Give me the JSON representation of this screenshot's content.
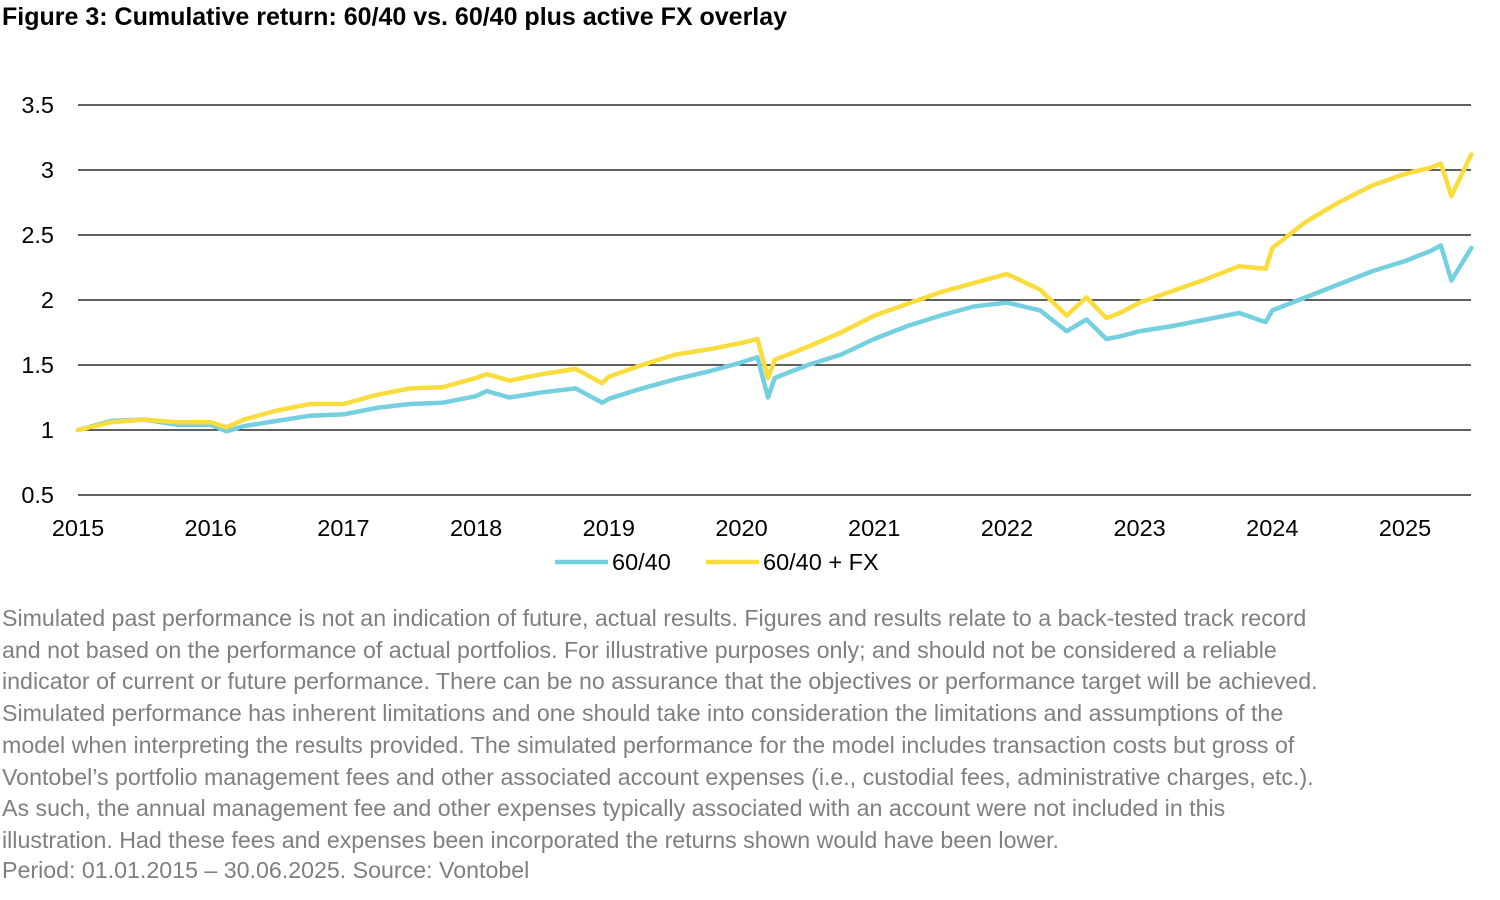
{
  "title": "Figure 3: Cumulative return: 60/40 vs. 60/40 plus active FX overlay",
  "chart_data": {
    "type": "line",
    "title": "Figure 3: Cumulative return: 60/40 vs. 60/40 plus active FX overlay",
    "xlabel": "",
    "ylabel": "",
    "xlim": [
      2015,
      2025.5
    ],
    "ylim": [
      0.5,
      3.5
    ],
    "y_ticks": [
      "0.5",
      "1",
      "1.5",
      "2",
      "2.5",
      "3",
      "3.5"
    ],
    "x_ticks": [
      "2015",
      "2016",
      "2017",
      "2018",
      "2019",
      "2020",
      "2021",
      "2022",
      "2023",
      "2024",
      "2025"
    ],
    "grid": true,
    "legend_position": "bottom",
    "x": [
      2015.0,
      2015.25,
      2015.5,
      2015.75,
      2016.0,
      2016.12,
      2016.25,
      2016.5,
      2016.75,
      2017.0,
      2017.25,
      2017.5,
      2017.75,
      2018.0,
      2018.08,
      2018.25,
      2018.5,
      2018.75,
      2018.95,
      2019.0,
      2019.25,
      2019.5,
      2019.75,
      2020.0,
      2020.12,
      2020.2,
      2020.25,
      2020.5,
      2020.75,
      2021.0,
      2021.25,
      2021.5,
      2021.75,
      2022.0,
      2022.25,
      2022.45,
      2022.6,
      2022.75,
      2022.85,
      2023.0,
      2023.25,
      2023.5,
      2023.75,
      2023.95,
      2024.0,
      2024.25,
      2024.5,
      2024.75,
      2025.0,
      2025.2,
      2025.27,
      2025.35,
      2025.5
    ],
    "series": [
      {
        "name": "60/40",
        "color": "#74cfe0",
        "values": [
          1.0,
          1.07,
          1.08,
          1.04,
          1.04,
          0.99,
          1.03,
          1.07,
          1.11,
          1.12,
          1.17,
          1.2,
          1.21,
          1.26,
          1.3,
          1.25,
          1.29,
          1.32,
          1.21,
          1.24,
          1.32,
          1.39,
          1.45,
          1.52,
          1.56,
          1.25,
          1.4,
          1.5,
          1.58,
          1.7,
          1.8,
          1.88,
          1.95,
          1.98,
          1.92,
          1.76,
          1.85,
          1.7,
          1.72,
          1.76,
          1.8,
          1.85,
          1.9,
          1.83,
          1.92,
          2.02,
          2.12,
          2.22,
          2.3,
          2.38,
          2.42,
          2.15,
          2.4
        ]
      },
      {
        "name": "60/40 + FX",
        "color": "#fbdc3d",
        "values": [
          1.0,
          1.06,
          1.08,
          1.06,
          1.06,
          1.02,
          1.08,
          1.15,
          1.2,
          1.2,
          1.27,
          1.32,
          1.33,
          1.4,
          1.43,
          1.38,
          1.43,
          1.47,
          1.36,
          1.41,
          1.5,
          1.58,
          1.62,
          1.67,
          1.7,
          1.4,
          1.54,
          1.64,
          1.75,
          1.88,
          1.97,
          2.06,
          2.13,
          2.2,
          2.08,
          1.88,
          2.02,
          1.86,
          1.9,
          1.98,
          2.07,
          2.16,
          2.26,
          2.24,
          2.4,
          2.6,
          2.75,
          2.88,
          2.97,
          3.02,
          3.05,
          2.8,
          3.12
        ]
      }
    ]
  },
  "notes": {
    "line1": "Simulated past performance is not an indication of future, actual results. Figures and results relate to a back-tested track record",
    "line2": "and not based on the performance of actual portfolios. For illustrative purposes only; and should not be considered a reliable",
    "line3": "indicator of current or future performance. There can be no assurance that the objectives or performance target will be achieved.",
    "line4": "Simulated performance has inherent limitations and one should take into consideration the limitations and assumptions of the",
    "line5": "model when interpreting the results provided. The simulated performance for the model includes transaction costs but gross of",
    "line6": "Vontobel’s portfolio management fees and other associated account expenses (i.e., custodial fees, administrative charges, etc.).",
    "line7": "As such, the annual management fee and other expenses typically associated with an account were not included in this",
    "line8": "illustration. Had these fees and expenses been incorporated the returns shown would have been lower.",
    "period": "Period: 01.01.2015 – 30.06.2025. Source: Vontobel"
  }
}
